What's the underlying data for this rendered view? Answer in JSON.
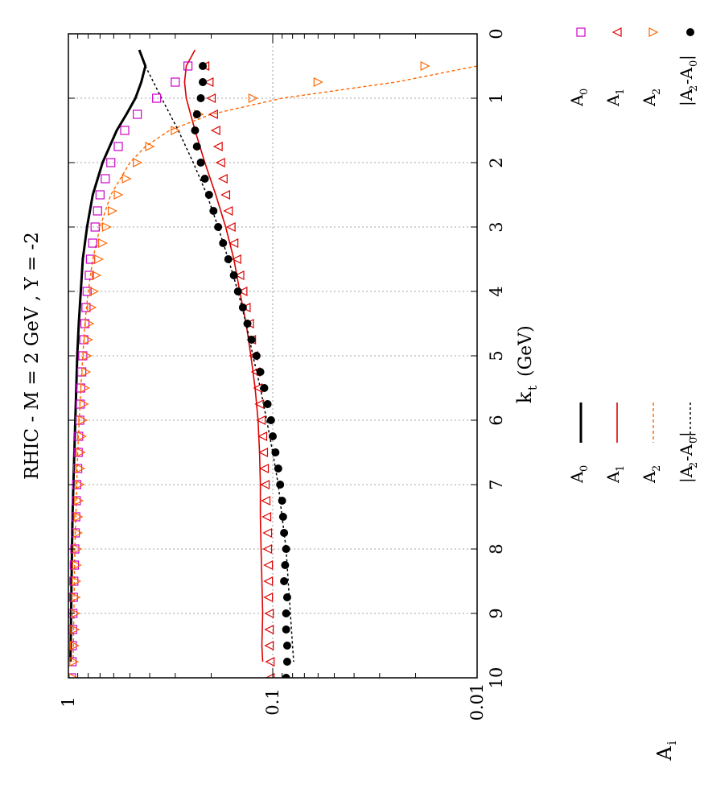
{
  "chart_data": {
    "type": "scatter",
    "orientation": "rotated-90-ccw",
    "title": "RHIC  -  M = 2 GeV , Y = -2",
    "xlabel": "k",
    "xlabel_sub": "t",
    "xlabel_unit": "(GeV)",
    "ylabel": "A",
    "ylabel_sub": "i",
    "x_ticks": [
      "0",
      "1",
      "2",
      "3",
      "4",
      "5",
      "6",
      "7",
      "8",
      "9",
      "10"
    ],
    "y_ticks": [
      "0.01",
      "0.1",
      "1"
    ],
    "xlim": [
      0,
      10
    ],
    "ylim": [
      0.01,
      1
    ],
    "yscale": "log",
    "grid": true,
    "legend_placement": "bottom (two legend blocks: lines and symbols)",
    "line_series": [
      {
        "key": "A0",
        "label": "A",
        "sub": "0",
        "color": "#000000",
        "style": "solid-thick",
        "x": [
          0.25,
          0.5,
          0.75,
          1,
          1.25,
          1.5,
          2,
          2.5,
          3,
          3.5,
          4,
          4.5,
          5,
          5.5,
          6,
          6.5,
          7,
          7.5,
          8,
          8.5,
          9,
          9.5,
          9.75
        ],
        "y": [
          0.45,
          0.42,
          0.44,
          0.47,
          0.52,
          0.58,
          0.68,
          0.76,
          0.81,
          0.85,
          0.87,
          0.89,
          0.905,
          0.915,
          0.925,
          0.935,
          0.945,
          0.955,
          0.96,
          0.965,
          0.97,
          0.975,
          0.978
        ]
      },
      {
        "key": "A1",
        "label": "A",
        "sub": "1",
        "color": "#dd0000",
        "style": "solid",
        "x": [
          0.25,
          0.5,
          0.75,
          1,
          1.5,
          2,
          2.5,
          3,
          3.5,
          4,
          4.5,
          5,
          5.5,
          6,
          6.5,
          7,
          7.5,
          8,
          8.5,
          9,
          9.5,
          9.75
        ],
        "y": [
          0.24,
          0.265,
          0.27,
          0.265,
          0.24,
          0.215,
          0.19,
          0.17,
          0.155,
          0.145,
          0.135,
          0.128,
          0.122,
          0.118,
          0.116,
          0.115,
          0.115,
          0.114,
          0.113,
          0.112,
          0.113,
          0.112
        ]
      },
      {
        "key": "A2",
        "label": "A",
        "sub": "2",
        "color": "#ff6600",
        "style": "dashed",
        "x": [
          0.5,
          0.75,
          1,
          1.25,
          1.5,
          1.75,
          2,
          2.5,
          3,
          3.5,
          4,
          4.5,
          5,
          5.5,
          6,
          6.5,
          7,
          7.5,
          8,
          8.5,
          9,
          9.5,
          9.75
        ],
        "y": [
          0.01,
          0.025,
          0.09,
          0.2,
          0.32,
          0.42,
          0.5,
          0.62,
          0.7,
          0.76,
          0.8,
          0.83,
          0.85,
          0.87,
          0.885,
          0.9,
          0.91,
          0.92,
          0.93,
          0.935,
          0.94,
          0.945,
          0.947
        ]
      },
      {
        "key": "A2mA0",
        "label": "|A",
        "sub": "2",
        "label2": "-A",
        "sub2": "0",
        "label3": "|",
        "color": "#000000",
        "style": "dotted",
        "x": [
          0.5,
          1,
          1.5,
          2,
          2.5,
          3,
          3.5,
          4,
          4.5,
          5,
          5.5,
          6,
          6.5,
          7,
          7.5,
          8,
          8.5,
          9,
          9.5,
          9.75
        ],
        "y": [
          0.42,
          0.35,
          0.29,
          0.245,
          0.21,
          0.185,
          0.165,
          0.148,
          0.135,
          0.125,
          0.115,
          0.107,
          0.1,
          0.094,
          0.09,
          0.086,
          0.084,
          0.082,
          0.08,
          0.079
        ]
      }
    ],
    "point_series": [
      {
        "key": "A0",
        "label": "A",
        "sub": "0",
        "color": "#cc00cc",
        "marker": "square",
        "x": [
          0.5,
          0.75,
          1,
          1.25,
          1.5,
          1.75,
          2,
          2.25,
          2.5,
          2.75,
          3,
          3.25,
          3.5,
          3.75,
          4,
          4.25,
          4.5,
          4.75,
          5,
          5.25,
          5.5,
          5.75,
          6,
          6.25,
          6.5,
          6.75,
          7,
          7.25,
          7.5,
          7.75,
          8,
          8.25,
          8.5,
          8.75,
          9,
          9.25,
          9.5,
          9.75,
          10
        ],
        "y": [
          0.26,
          0.3,
          0.37,
          0.46,
          0.53,
          0.57,
          0.62,
          0.66,
          0.7,
          0.72,
          0.74,
          0.76,
          0.78,
          0.79,
          0.81,
          0.82,
          0.83,
          0.84,
          0.85,
          0.86,
          0.87,
          0.875,
          0.88,
          0.89,
          0.895,
          0.9,
          0.91,
          0.915,
          0.92,
          0.925,
          0.93,
          0.935,
          0.94,
          0.945,
          0.95,
          0.953,
          0.957,
          0.96,
          0.965
        ]
      },
      {
        "key": "A1",
        "label": "A",
        "sub": "1",
        "color": "#dd0000",
        "marker": "triangle-right",
        "x": [
          0.5,
          0.75,
          1,
          1.25,
          1.5,
          1.75,
          2,
          2.25,
          2.5,
          2.75,
          3,
          3.25,
          3.5,
          3.75,
          4,
          4.25,
          4.5,
          4.75,
          5,
          5.25,
          5.5,
          5.75,
          6,
          6.25,
          6.5,
          6.75,
          7,
          7.25,
          7.5,
          7.75,
          8,
          8.25,
          8.5,
          8.75,
          9,
          9.25,
          9.5,
          9.75,
          10
        ],
        "y": [
          0.215,
          0.205,
          0.2,
          0.195,
          0.19,
          0.185,
          0.18,
          0.175,
          0.17,
          0.165,
          0.16,
          0.155,
          0.15,
          0.145,
          0.14,
          0.135,
          0.13,
          0.127,
          0.124,
          0.121,
          0.118,
          0.116,
          0.114,
          0.112,
          0.111,
          0.11,
          0.109,
          0.108,
          0.107,
          0.106,
          0.106,
          0.105,
          0.105,
          0.105,
          0.104,
          0.104,
          0.104,
          0.103,
          0.103
        ]
      },
      {
        "key": "A2",
        "label": "A",
        "sub": "2",
        "color": "#ff6600",
        "marker": "triangle-left",
        "x": [
          0.5,
          0.75,
          1,
          1.25,
          1.5,
          1.75,
          2,
          2.25,
          2.5,
          2.75,
          3,
          3.25,
          3.5,
          3.75,
          4,
          4.25,
          4.5,
          4.75,
          5,
          5.25,
          5.5,
          5.75,
          6,
          6.25,
          6.5,
          6.75,
          7,
          7.25,
          7.5,
          7.75,
          8,
          8.25,
          8.5,
          8.75,
          9,
          9.25,
          9.5,
          9.75,
          10
        ],
        "y": [
          0.018,
          0.06,
          0.125,
          0.23,
          0.3,
          0.4,
          0.46,
          0.52,
          0.57,
          0.61,
          0.65,
          0.68,
          0.71,
          0.73,
          0.75,
          0.77,
          0.79,
          0.8,
          0.81,
          0.82,
          0.83,
          0.84,
          0.85,
          0.86,
          0.87,
          0.875,
          0.88,
          0.89,
          0.895,
          0.9,
          0.905,
          0.91,
          0.915,
          0.92,
          0.925,
          0.93,
          0.935,
          0.94,
          0.945
        ]
      },
      {
        "key": "A2mA0",
        "label": "|A",
        "sub": "2",
        "label2": "-A",
        "sub2": "0",
        "label3": "|",
        "color": "#000000",
        "marker": "dot",
        "x": [
          0.5,
          0.75,
          1,
          1.25,
          1.5,
          1.75,
          2,
          2.25,
          2.5,
          2.75,
          3,
          3.25,
          3.5,
          3.75,
          4,
          4.25,
          4.5,
          4.75,
          5,
          5.25,
          5.5,
          5.75,
          6,
          6.25,
          6.5,
          6.75,
          7,
          7.25,
          7.5,
          7.75,
          8,
          8.25,
          8.5,
          8.75,
          9,
          9.25,
          9.5,
          9.75,
          10
        ],
        "y": [
          0.22,
          0.22,
          0.225,
          0.235,
          0.24,
          0.235,
          0.225,
          0.215,
          0.205,
          0.195,
          0.185,
          0.175,
          0.165,
          0.155,
          0.148,
          0.14,
          0.133,
          0.127,
          0.12,
          0.115,
          0.11,
          0.106,
          0.102,
          0.1,
          0.097,
          0.094,
          0.092,
          0.09,
          0.089,
          0.088,
          0.086,
          0.087,
          0.088,
          0.085,
          0.086,
          0.086,
          0.085,
          0.085,
          0.086
        ]
      }
    ]
  }
}
